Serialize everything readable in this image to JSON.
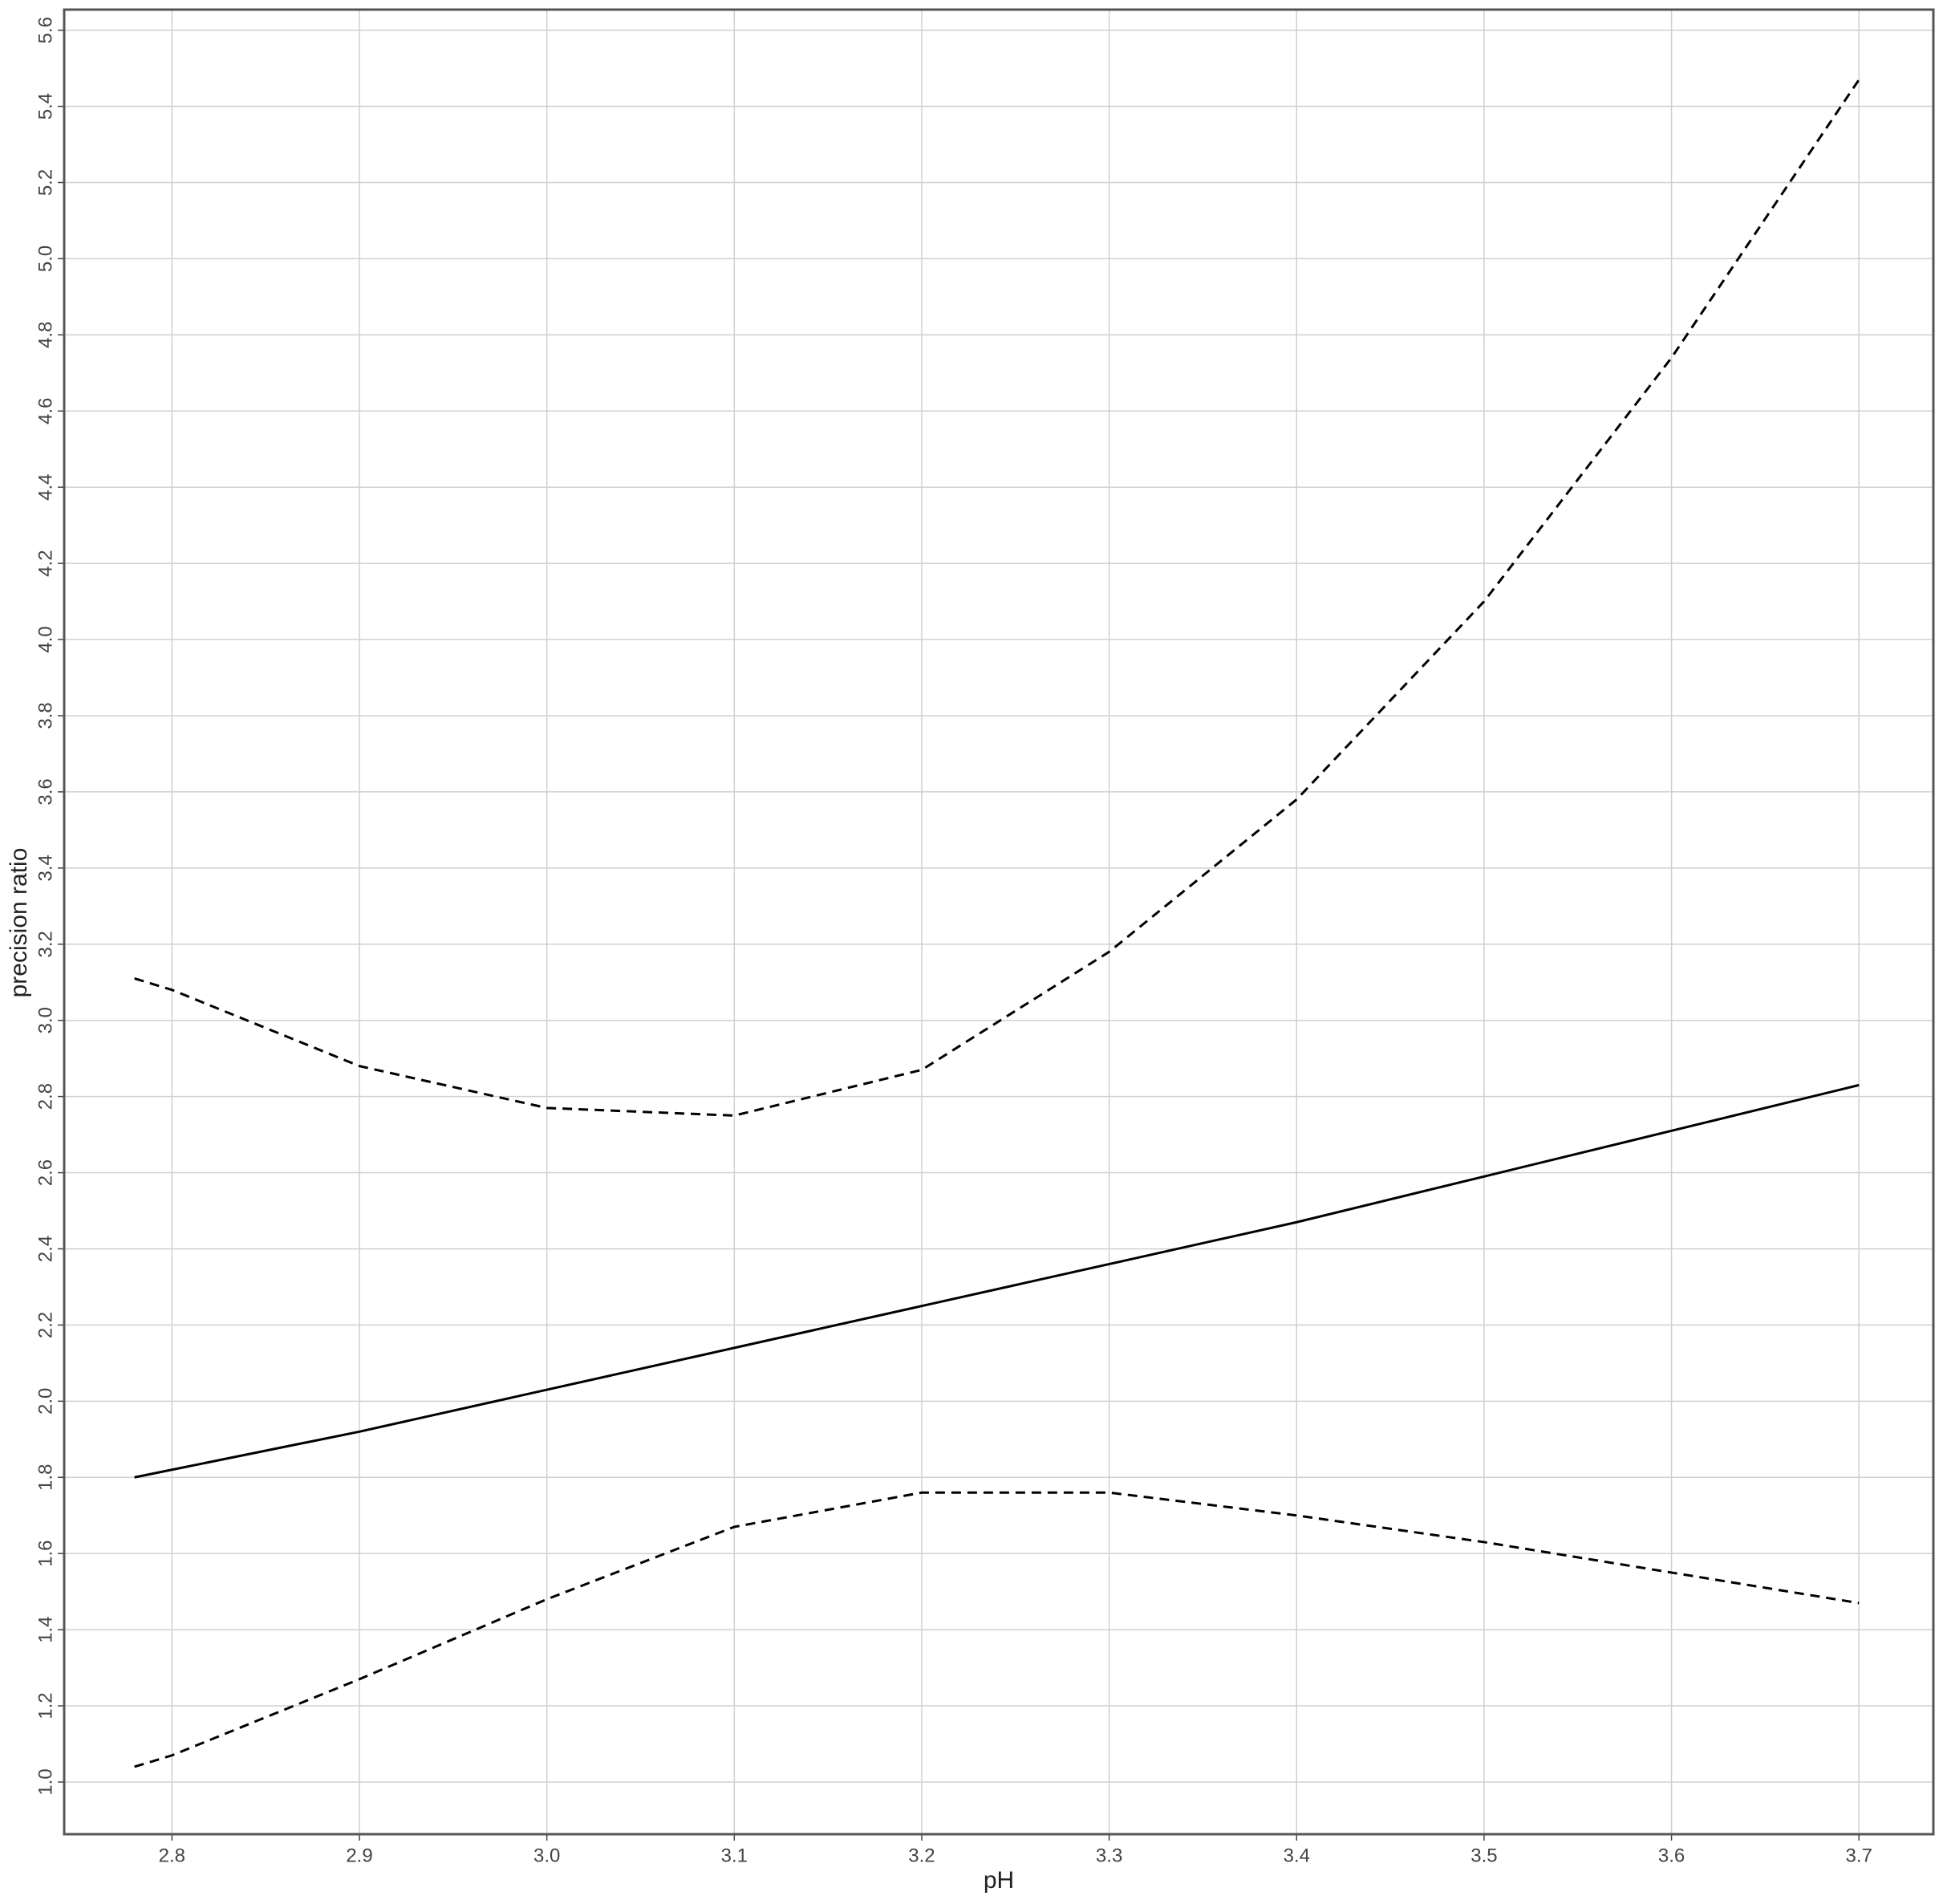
{
  "chart_data": {
    "type": "line",
    "x_label": "pH",
    "y_label": "precision ratio",
    "x": [
      2.78,
      2.8,
      2.9,
      3.0,
      3.1,
      3.2,
      3.3,
      3.4,
      3.5,
      3.6,
      3.7
    ],
    "series": [
      {
        "color": "#000000",
        "dashed": false,
        "values": [
          1.8,
          1.82,
          1.92,
          2.03,
          2.14,
          2.25,
          2.36,
          2.47,
          2.59,
          2.71,
          2.83
        ]
      },
      {
        "color": "#000000",
        "dashed": true,
        "values": [
          3.11,
          3.08,
          2.88,
          2.77,
          2.75,
          2.87,
          3.18,
          3.58,
          4.1,
          4.74,
          5.47
        ]
      },
      {
        "color": "#000000",
        "dashed": true,
        "values": [
          1.04,
          1.07,
          1.27,
          1.48,
          1.67,
          1.76,
          1.76,
          1.7,
          1.63,
          1.55,
          1.47
        ]
      }
    ],
    "xlim": [
      2.7425,
      3.7397
    ],
    "ylim": [
      0.863,
      5.654
    ],
    "xticks": [
      2.8,
      2.9,
      {
        "value": 3,
        "label": "3.0"
      },
      3.1,
      3.2,
      3.3,
      3.4,
      3.5,
      3.6,
      3.7
    ],
    "yticks": [
      {
        "value": 1,
        "label": "1.0"
      },
      1.2,
      1.4,
      1.6,
      1.8,
      {
        "value": 2,
        "label": "2.0"
      },
      2.2,
      2.4,
      2.6,
      2.8,
      {
        "value": 3,
        "label": "3.0"
      },
      3.2,
      3.4,
      3.6,
      3.8,
      {
        "value": 4,
        "label": "4.0"
      },
      4.2,
      4.4,
      4.6,
      4.8,
      {
        "value": 5,
        "label": "5.0"
      },
      5.2,
      5.4,
      5.6
    ],
    "grid": true
  }
}
